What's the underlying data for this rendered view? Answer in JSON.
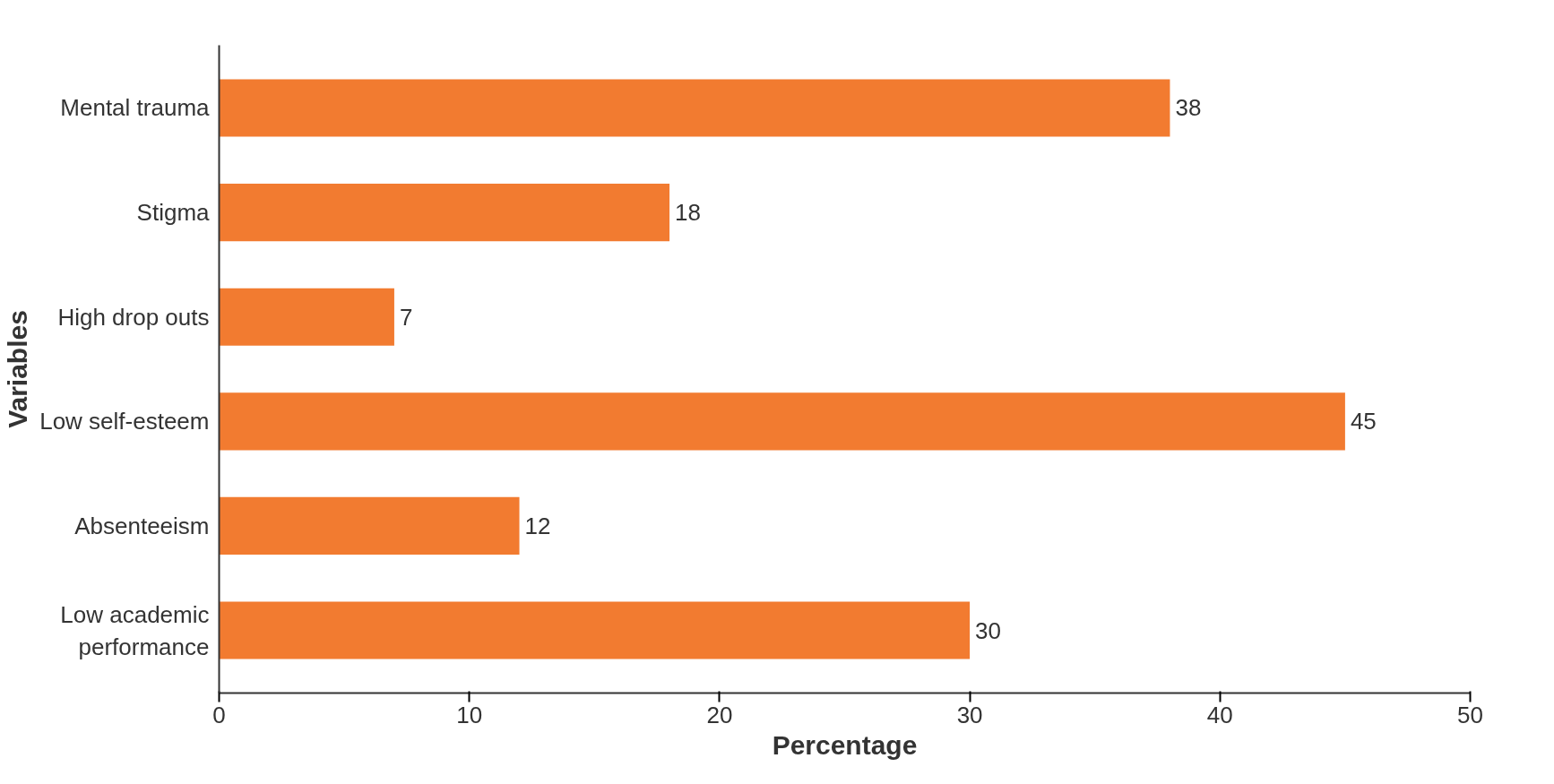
{
  "chart_data": {
    "type": "bar",
    "orientation": "horizontal",
    "xlabel": "Percentage",
    "ylabel": "Variables",
    "categories": [
      "Mental trauma",
      "Stigma",
      "High drop outs",
      "Low self-esteem",
      "Absenteeism",
      "Low academic performance"
    ],
    "values": [
      38,
      18,
      7,
      45,
      12,
      30
    ],
    "color": "#f27b30",
    "xlim": [
      0,
      50
    ],
    "xticks": [
      0,
      10,
      20,
      30,
      40,
      50
    ],
    "data_labels": true,
    "grid": false
  }
}
